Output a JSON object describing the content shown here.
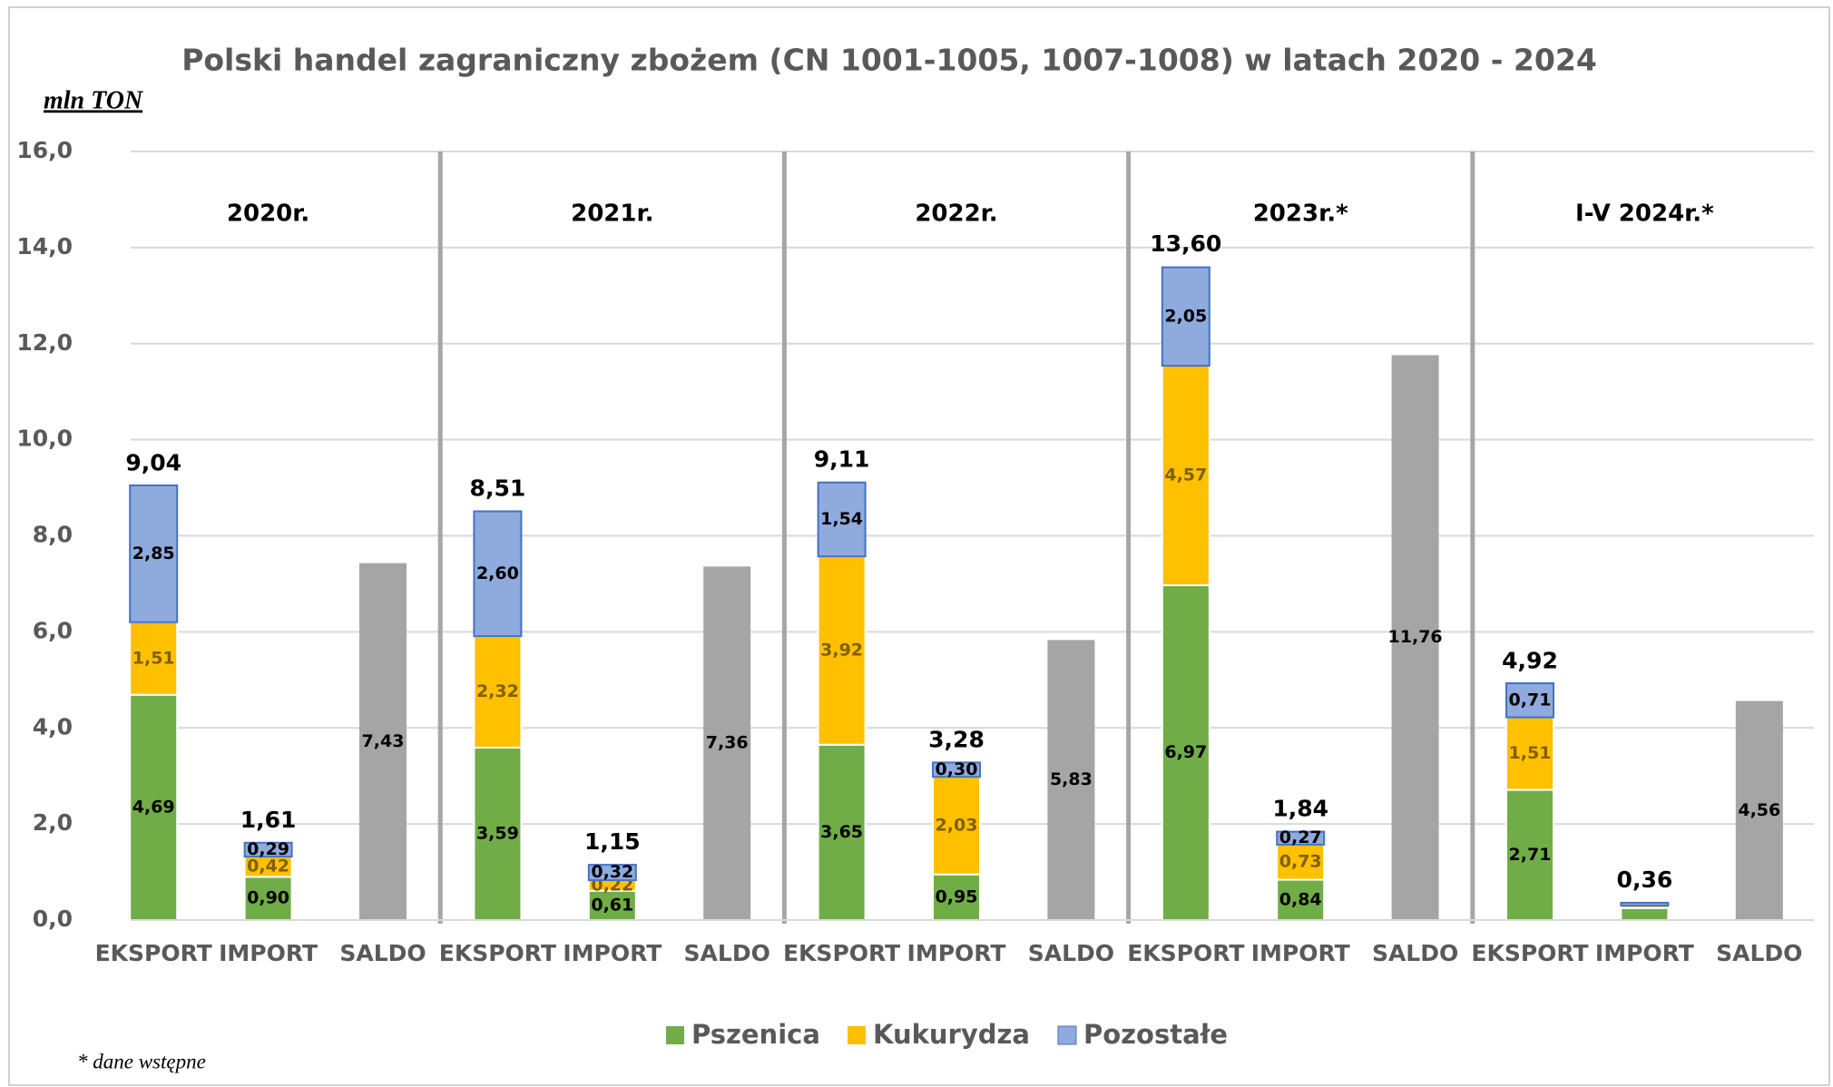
{
  "chart_data": {
    "type": "stacked_bar",
    "title": "Polski handel zagraniczny zbożem (CN 1001-1005, 1007-1008) w latach 2020 - 2024",
    "y_label": "mln TON",
    "groups": [
      "2020r.",
      "2021r.",
      "2022r.",
      "2023r.*",
      "I-V 2024r.*"
    ],
    "categories": [
      "EKSPORT",
      "IMPORT",
      "SALDO",
      "EKSPORT",
      "IMPORT",
      "SALDO",
      "EKSPORT",
      "IMPORT",
      "SALDO",
      "EKSPORT",
      "IMPORT",
      "SALDO",
      "EKSPORT",
      "IMPORT",
      "SALDO"
    ],
    "series": [
      {
        "name": "Pszenica",
        "color": "#70ad47",
        "values": [
          4.69,
          0.9,
          null,
          3.59,
          0.61,
          null,
          3.65,
          0.95,
          null,
          6.97,
          0.84,
          null,
          2.71,
          0.25,
          null
        ],
        "value_labels": [
          "4,69",
          "0,90",
          null,
          "3,59",
          "0,61",
          null,
          "3,65",
          "0,95",
          null,
          "6,97",
          "0,84",
          null,
          "2,71",
          null,
          null
        ]
      },
      {
        "name": "Kukurydza",
        "color": "#ffc000",
        "values": [
          1.51,
          0.42,
          null,
          2.32,
          0.22,
          null,
          3.92,
          2.03,
          null,
          4.57,
          0.73,
          null,
          1.51,
          0.05,
          null
        ],
        "value_labels": [
          "1,51",
          "0,42",
          null,
          "2,32",
          "0,22",
          null,
          "3,92",
          "2,03",
          null,
          "4,57",
          "0,73",
          null,
          "1,51",
          null,
          null
        ]
      },
      {
        "name": "Pozostałe",
        "color": "#8faadc",
        "values": [
          2.85,
          0.29,
          null,
          2.6,
          0.32,
          null,
          1.54,
          0.3,
          null,
          2.05,
          0.27,
          null,
          0.71,
          0.06,
          null
        ],
        "value_labels": [
          "2,85",
          "0,29",
          null,
          "2,60",
          "0,32",
          null,
          "1,54",
          "0,30",
          null,
          "2,05",
          "0,27",
          null,
          "0,71",
          null,
          null
        ]
      }
    ],
    "saldo": {
      "color": "#a5a5a5",
      "values": [
        null,
        null,
        7.43,
        null,
        null,
        7.36,
        null,
        null,
        5.83,
        null,
        null,
        11.76,
        null,
        null,
        4.56
      ],
      "value_labels": [
        null,
        null,
        "7,43",
        null,
        null,
        "7,36",
        null,
        null,
        "5,83",
        null,
        null,
        "11,76",
        null,
        null,
        "4,56"
      ]
    },
    "totals": {
      "values": [
        9.04,
        1.61,
        null,
        8.51,
        1.15,
        null,
        9.11,
        3.28,
        null,
        13.6,
        1.84,
        null,
        4.92,
        0.36,
        null
      ],
      "value_labels": [
        "9,04",
        "1,61",
        null,
        "8,51",
        "1,15",
        null,
        "9,11",
        "3,28",
        null,
        "13,60",
        "1,84",
        null,
        "4,92",
        "0,36",
        null
      ]
    },
    "ylim": [
      0,
      16
    ],
    "yticks": [
      {
        "value": 0,
        "label": "0,0"
      },
      {
        "value": 2,
        "label": "2,0"
      },
      {
        "value": 4,
        "label": "4,0"
      },
      {
        "value": 6,
        "label": "6,0"
      },
      {
        "value": 8,
        "label": "8,0"
      },
      {
        "value": 10,
        "label": "10,0"
      },
      {
        "value": 12,
        "label": "12,0"
      },
      {
        "value": 14,
        "label": "14,0"
      },
      {
        "value": 16,
        "label": "16,0"
      }
    ],
    "grid": true,
    "legend": "bottom",
    "footnote": "* dane wstępne"
  }
}
